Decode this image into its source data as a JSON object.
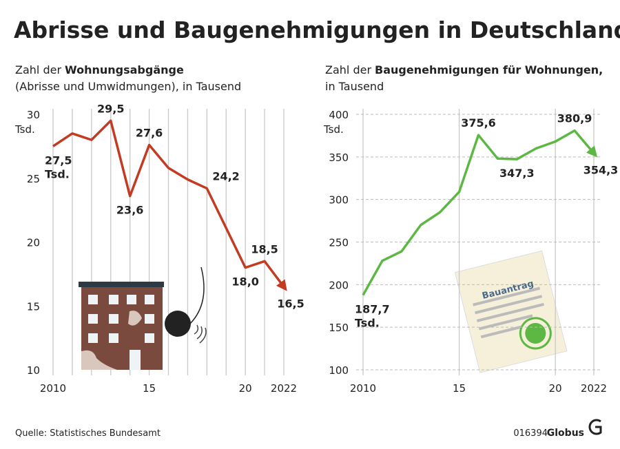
{
  "title": "Abrisse und Baugenehmigungen in Deutschland",
  "source": "Quelle: Statistisches Bundesamt",
  "code": "016394",
  "brand": "Globus",
  "chart_data": [
    {
      "type": "line",
      "subtitle": {
        "lead": "Zahl der",
        "bold": "Wohnungsabgänge",
        "rest": "(Abrisse und Umwidmungen), in Tausend"
      },
      "y_unit": "Tsd.",
      "label_unit": "Tsd.",
      "x": [
        2010,
        2011,
        2012,
        2013,
        2014,
        2015,
        2016,
        2017,
        2018,
        2019,
        2020,
        2021,
        2022
      ],
      "values": [
        27.5,
        28.5,
        28.0,
        29.5,
        23.6,
        27.6,
        25.8,
        24.9,
        24.2,
        21.1,
        18.0,
        18.5,
        16.5
      ],
      "value_labels": [
        "27,5",
        null,
        null,
        "29,5",
        "23,6",
        "27,6",
        null,
        null,
        "24,2",
        null,
        "18,0",
        "18,5",
        "16,5"
      ],
      "color": "#c23b22",
      "xlim": [
        2010,
        2022
      ],
      "xticks": [
        2010,
        {
          "value": 2015,
          "label": "15"
        },
        {
          "value": 2020,
          "label": "20"
        },
        2022
      ],
      "ylim": [
        10,
        30
      ],
      "yticks": [
        10,
        15,
        20,
        25,
        30
      ],
      "grid": "x",
      "arrow": true
    },
    {
      "type": "line",
      "subtitle": {
        "lead": "Zahl der",
        "bold": "Baugenehmigungen für Wohnungen,",
        "rest": "in Tausend"
      },
      "y_unit": "Tsd.",
      "label_unit": "Tsd.",
      "illustration_text": "Bauantrag",
      "x": [
        2010,
        2011,
        2012,
        2013,
        2014,
        2015,
        2016,
        2017,
        2018,
        2019,
        2020,
        2021,
        2022
      ],
      "values": [
        187.7,
        228.0,
        239.0,
        270.0,
        285.0,
        309.0,
        375.6,
        348.0,
        347.3,
        360.0,
        368.0,
        380.9,
        354.3
      ],
      "value_labels": [
        "187,7",
        null,
        null,
        null,
        null,
        null,
        "375,6",
        null,
        "347,3",
        null,
        null,
        "380,9",
        "354,3"
      ],
      "color": "#5cb843",
      "xlim": [
        2010,
        2022
      ],
      "xticks": [
        2010,
        {
          "value": 2015,
          "label": "15"
        },
        {
          "value": 2020,
          "label": "20"
        },
        2022
      ],
      "ylim": [
        100,
        400
      ],
      "yticks": [
        100,
        150,
        200,
        250,
        300,
        350,
        400
      ],
      "grid": "both",
      "arrow": true
    }
  ]
}
